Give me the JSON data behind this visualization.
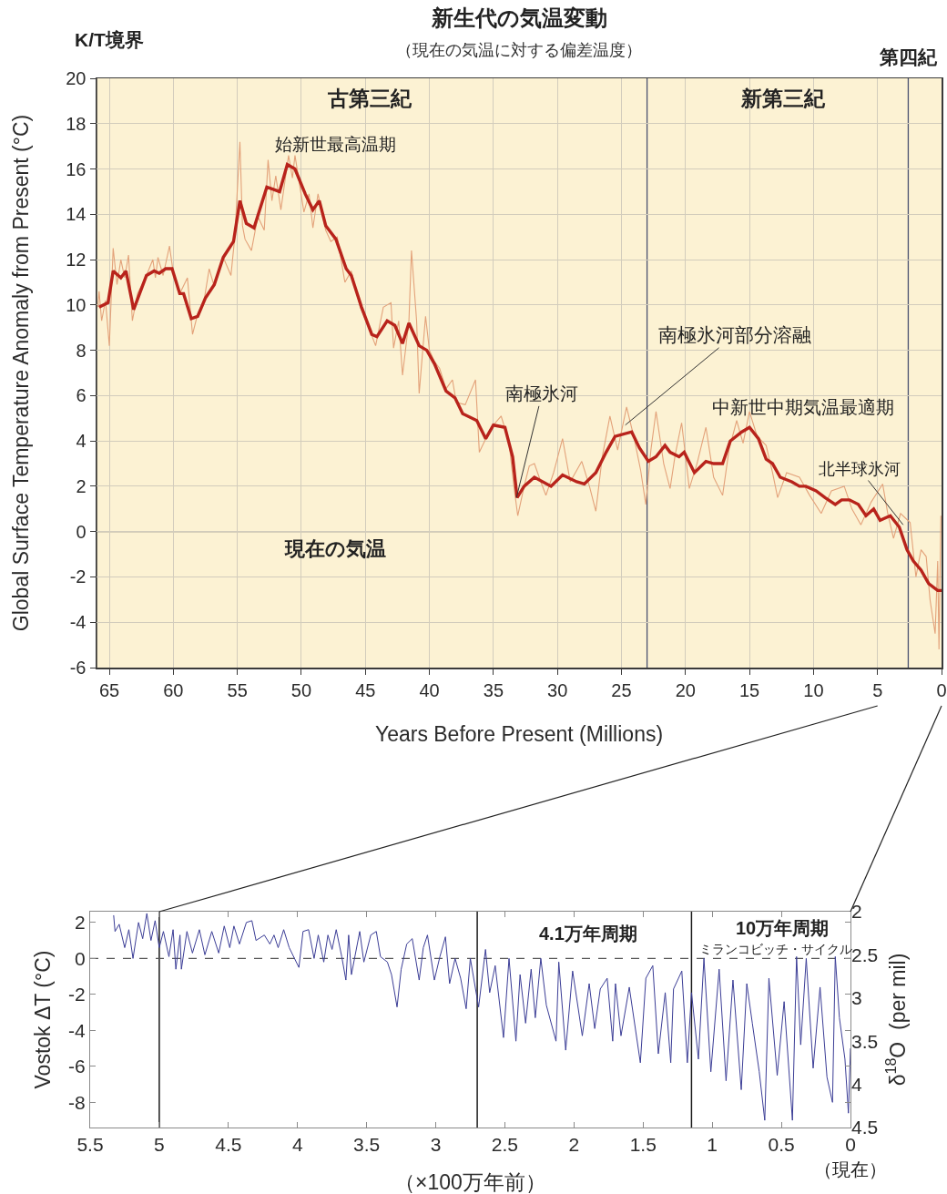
{
  "chart_data": [
    {
      "type": "line",
      "title": "新生代の気温変動",
      "subtitle": "（現在の気温に対する偏差温度）",
      "xlabel": "Years Before Present (Millions)",
      "ylabel": "Global Surface Temperature Anomaly from Present (°C)",
      "xlim": [
        66,
        0
      ],
      "xticks": [
        65,
        60,
        55,
        50,
        45,
        40,
        35,
        30,
        25,
        20,
        15,
        10,
        5,
        0
      ],
      "ylim": [
        -6,
        20
      ],
      "yticks": [
        -6,
        -4,
        -2,
        0,
        2,
        4,
        6,
        8,
        10,
        12,
        14,
        16,
        18,
        20
      ],
      "grid": true,
      "series": [
        {
          "color": "#e3a27a",
          "x": [
            65.9,
            65.8,
            65.6,
            65.3,
            65.0,
            64.7,
            64.4,
            64.1,
            63.8,
            63.5,
            63.2,
            62.8,
            62.1,
            61.6,
            61.4,
            61.2,
            60.8,
            60.3,
            60.0,
            59.5,
            58.9,
            58.5,
            58.1,
            57.6,
            57.2,
            56.8,
            56.1,
            55.5,
            55.2,
            54.8,
            54.6,
            54.4,
            53.9,
            53.4,
            52.9,
            52.6,
            52.3,
            52.0,
            51.6,
            51.0,
            50.7,
            50.5,
            49.8,
            49.4,
            49.1,
            48.7,
            48.1,
            47.7,
            47.2,
            46.6,
            46.1,
            45.4,
            44.8,
            44.2,
            43.6,
            43.0,
            42.8,
            42.4,
            42.1,
            41.6,
            41.4,
            41.0,
            40.8,
            40.3,
            40.0,
            39.6,
            39.2,
            38.7,
            38.2,
            37.9,
            37.2,
            36.4,
            36.1,
            35.6,
            35.0,
            34.4,
            33.8,
            33.4,
            33.1,
            32.6,
            32.2,
            31.8,
            31.3,
            30.9,
            30.3,
            29.6,
            29.0,
            28.1,
            27.5,
            27.0,
            26.5,
            25.9,
            25.3,
            24.6,
            24.0,
            23.5,
            23.1,
            22.7,
            22.3,
            21.7,
            21.2,
            20.8,
            20.3,
            19.7,
            19.1,
            18.4,
            17.8,
            17.1,
            16.6,
            16.0,
            15.5,
            15.0,
            14.4,
            13.7,
            13.2,
            12.8,
            12.1,
            11.1,
            10.3,
            9.4,
            8.6,
            7.6,
            7.0,
            6.3,
            5.5,
            4.6,
            4.2,
            3.75,
            3.2,
            2.45,
            2.0,
            1.6,
            1.2,
            0.9,
            0.5,
            0.3,
            0.2,
            0.05
          ],
          "values": [
            9.9,
            10.6,
            9.3,
            10.2,
            8.2,
            12.5,
            10.9,
            12.0,
            11.2,
            12.2,
            9.3,
            10.5,
            11.3,
            12.0,
            11.2,
            12.1,
            11.3,
            12.6,
            11.4,
            10.5,
            11.2,
            8.7,
            9.6,
            10.2,
            11.6,
            10.8,
            12.1,
            11.3,
            13.0,
            17.2,
            13.5,
            12.9,
            12.4,
            13.9,
            13.3,
            16.4,
            14.6,
            15.7,
            14.2,
            16.6,
            15.6,
            16.6,
            14.1,
            14.9,
            13.4,
            14.9,
            13.3,
            12.8,
            13.0,
            11.0,
            11.5,
            9.9,
            9.1,
            8.2,
            9.9,
            10.1,
            8.1,
            9.3,
            6.9,
            9.3,
            12.4,
            9.3,
            6.1,
            9.5,
            8.0,
            7.5,
            7.2,
            6.3,
            6.7,
            5.7,
            5.6,
            6.7,
            3.5,
            4.1,
            4.7,
            5.1,
            4.0,
            2.0,
            0.7,
            2.0,
            2.9,
            3.0,
            2.2,
            1.6,
            2.6,
            4.1,
            2.2,
            3.1,
            2.0,
            0.9,
            3.3,
            5.1,
            3.6,
            5.5,
            4.1,
            2.7,
            1.2,
            3.6,
            5.3,
            3.0,
            1.9,
            3.4,
            4.8,
            1.9,
            3.0,
            4.6,
            2.4,
            1.6,
            3.6,
            4.9,
            3.9,
            5.3,
            4.2,
            3.8,
            2.6,
            1.5,
            2.6,
            2.4,
            1.6,
            0.8,
            1.8,
            2.0,
            1.0,
            0.3,
            1.3,
            2.1,
            0.8,
            -0.3,
            0.8,
            0.4,
            -2.0,
            -0.8,
            -1.1,
            -3.0,
            -4.5,
            -1.3,
            -5.2,
            0.7
          ]
        },
        {
          "color": "#b8231b",
          "x": [
            65.8,
            65.1,
            64.7,
            64.1,
            63.7,
            63.1,
            62.1,
            61.5,
            61.1,
            60.6,
            60.1,
            59.5,
            59.2,
            58.6,
            58.1,
            57.5,
            56.8,
            56.1,
            55.3,
            54.8,
            54.3,
            53.7,
            52.7,
            52.2,
            51.7,
            51.1,
            50.5,
            49.7,
            49.1,
            48.6,
            48.1,
            47.3,
            46.5,
            46.1,
            45.3,
            44.5,
            44.1,
            43.3,
            42.7,
            42.1,
            41.6,
            40.8,
            40.2,
            39.6,
            38.7,
            38.0,
            37.4,
            36.3,
            35.6,
            35.0,
            34.1,
            33.5,
            33.15,
            32.6,
            31.8,
            30.5,
            29.6,
            28.5,
            27.9,
            27.0,
            26.2,
            25.5,
            24.2,
            23.6,
            22.9,
            22.3,
            21.6,
            21.2,
            20.5,
            20.1,
            19.3,
            18.4,
            17.8,
            17.1,
            16.5,
            15.6,
            15.0,
            14.3,
            13.7,
            13.2,
            12.6,
            11.7,
            11.1,
            10.6,
            9.8,
            9.1,
            8.3,
            7.8,
            7.2,
            6.5,
            5.9,
            5.3,
            4.8,
            4.0,
            3.3,
            2.7,
            2.2,
            1.6,
            1.0,
            0.3,
            0.0
          ],
          "values": [
            9.9,
            10.1,
            11.5,
            11.2,
            11.5,
            9.8,
            11.3,
            11.5,
            11.4,
            11.6,
            11.6,
            10.5,
            10.5,
            9.4,
            9.5,
            10.3,
            10.9,
            12.1,
            12.8,
            14.6,
            13.6,
            13.4,
            15.2,
            15.1,
            15.0,
            16.2,
            16.0,
            14.9,
            14.2,
            14.6,
            13.5,
            12.9,
            11.6,
            11.3,
            9.9,
            8.7,
            8.6,
            9.3,
            9.1,
            8.3,
            9.2,
            8.2,
            8.0,
            7.4,
            6.2,
            5.9,
            5.2,
            4.9,
            4.1,
            4.7,
            4.6,
            3.3,
            1.5,
            2.0,
            2.4,
            2.0,
            2.5,
            2.2,
            2.1,
            2.6,
            3.5,
            4.2,
            4.4,
            3.7,
            3.1,
            3.3,
            3.8,
            3.5,
            3.3,
            3.5,
            2.6,
            3.1,
            3.0,
            3.0,
            4.0,
            4.4,
            4.6,
            4.1,
            3.2,
            3.0,
            2.4,
            2.2,
            2.0,
            2.0,
            1.8,
            1.5,
            1.2,
            1.4,
            1.4,
            1.2,
            0.7,
            1.0,
            0.5,
            0.7,
            0.2,
            -0.8,
            -1.3,
            -1.7,
            -2.3,
            -2.6,
            -2.6
          ]
        }
      ],
      "ref_lines": [
        {
          "axis": "x",
          "value": 66,
          "label": "K/T境界",
          "color": "#333333"
        },
        {
          "axis": "x",
          "value": 23,
          "color": "#4b5270"
        },
        {
          "axis": "x",
          "value": 2.6,
          "label": "第四紀",
          "color": "#4b5270"
        },
        {
          "axis": "y",
          "value": 0,
          "label": "現在の気温",
          "color": "#6e6e6e"
        }
      ],
      "annotations": [
        "古第三紀",
        "新第三紀",
        {
          "text": "始新世最高温期",
          "x": 51.1,
          "y": 16.2
        },
        {
          "text": "南極氷河",
          "x": 33.2,
          "y": 1.5
        },
        {
          "text": "南極氷河部分溶融",
          "x": 24.7,
          "y": 4.7
        },
        {
          "text": "中新世中期気温最適期",
          "x": 15.2,
          "y": 4.6
        },
        {
          "text": "北半球氷河",
          "x": 3.0,
          "y": 0.3
        }
      ]
    },
    {
      "type": "line",
      "xlabel": "（×100万年前）",
      "ylabel": "Vostok ΔT (°C)",
      "y2label": "δ$^{18}$O  (per mil)",
      "xlim": [
        5.5,
        0
      ],
      "xticks": [
        5.5,
        5,
        4.5,
        4,
        3.5,
        3,
        2.5,
        2,
        1.5,
        1,
        0.5,
        0
      ],
      "ylim": [
        -9.4,
        2.6
      ],
      "yticks": [
        -8,
        -6,
        -4,
        -2,
        0,
        2
      ],
      "y2lim": [
        4.5,
        2
      ],
      "y2ticks": [
        2,
        2.5,
        3,
        3.5,
        4,
        4.5
      ],
      "series": [
        {
          "color": "#3b3d96",
          "x": [
            5.33,
            5.32,
            5.29,
            5.25,
            5.22,
            5.19,
            5.15,
            5.12,
            5.09,
            5.06,
            5.03,
            5.0,
            4.97,
            4.93,
            4.9,
            4.88,
            4.85,
            4.84,
            4.8,
            4.76,
            4.71,
            4.67,
            4.62,
            4.57,
            4.53,
            4.49,
            4.46,
            4.42,
            4.37,
            4.33,
            4.3,
            4.24,
            4.2,
            4.17,
            4.14,
            4.1,
            4.06,
            3.99,
            3.96,
            3.92,
            3.88,
            3.85,
            3.81,
            3.78,
            3.75,
            3.72,
            3.68,
            3.65,
            3.63,
            3.61,
            3.55,
            3.52,
            3.47,
            3.43,
            3.4,
            3.35,
            3.32,
            3.28,
            3.25,
            3.21,
            3.17,
            3.12,
            3.09,
            3.06,
            3.01,
            2.97,
            2.93,
            2.9,
            2.86,
            2.82,
            2.78,
            2.75,
            2.69,
            2.64,
            2.61,
            2.57,
            2.51,
            2.47,
            2.42,
            2.39,
            2.35,
            2.31,
            2.28,
            2.24,
            2.2,
            2.13,
            2.11,
            2.06,
            2.01,
            1.94,
            1.89,
            1.85,
            1.81,
            1.76,
            1.72,
            1.7,
            1.66,
            1.6,
            1.52,
            1.48,
            1.43,
            1.39,
            1.34,
            1.3,
            1.28,
            1.22,
            1.18,
            1.15,
            1.1,
            1.06,
            1.01,
            0.95,
            0.9,
            0.85,
            0.79,
            0.75,
            0.71,
            0.66,
            0.62,
            0.59,
            0.53,
            0.48,
            0.42,
            0.39,
            0.36,
            0.32,
            0.27,
            0.22,
            0.17,
            0.13,
            0.11,
            0.08,
            0.04,
            0.015,
            0.0
          ],
          "values": [
            2.4,
            1.5,
            1.9,
            0.6,
            1.6,
            0.0,
            2.0,
            1.1,
            2.5,
            1.0,
            2.1,
            0.6,
            1.5,
            0.1,
            1.6,
            -0.6,
            1.3,
            -0.6,
            1.5,
            0.3,
            1.6,
            0.2,
            1.5,
            0.3,
            1.8,
            0.6,
            1.8,
            0.8,
            2.0,
            2.1,
            1.0,
            1.3,
            0.8,
            1.3,
            0.6,
            1.6,
            0.6,
            -0.5,
            1.5,
            1.6,
            0.0,
            1.3,
            -0.2,
            1.3,
            0.5,
            1.6,
            0.1,
            -1.2,
            1.3,
            -0.9,
            1.5,
            -0.2,
            1.3,
            1.5,
            0.1,
            -0.2,
            -0.9,
            -2.7,
            -0.6,
            0.8,
            1.1,
            -1.2,
            0.6,
            1.3,
            -1.2,
            0.1,
            1.2,
            -1.4,
            0.0,
            -1.1,
            -2.8,
            0.0,
            -2.7,
            0.5,
            -1.9,
            -0.4,
            -4.4,
            0.0,
            -4.6,
            -0.9,
            -3.6,
            -0.6,
            -3.3,
            0.0,
            -2.6,
            -4.6,
            -0.2,
            -5.1,
            -0.7,
            -4.3,
            -1.4,
            -3.9,
            -1.7,
            -1.1,
            -4.6,
            -1.4,
            -4.3,
            -1.6,
            -5.8,
            -1.1,
            -0.4,
            -5.3,
            -1.9,
            -5.8,
            -1.7,
            -0.7,
            -5.8,
            -1.9,
            -5.6,
            0.0,
            -6.3,
            -0.6,
            -6.8,
            -1.2,
            -7.3,
            -1.4,
            -3.6,
            -6.3,
            -9.0,
            -1.1,
            -6.5,
            -2.4,
            -9.0,
            0.1,
            -4.8,
            0.0,
            -6.1,
            -1.6,
            -6.6,
            -8.0,
            0.1,
            -3.3,
            -5.6,
            -8.6,
            -5.0
          ]
        }
      ],
      "ref_lines": [
        {
          "axis": "x",
          "value": 5,
          "color": "#1a1a1a"
        },
        {
          "axis": "x",
          "value": 2.7,
          "color": "#1a1a1a"
        },
        {
          "axis": "x",
          "value": 1.15,
          "color": "#1a1a1a"
        },
        {
          "axis": "y",
          "value": 0,
          "color": "#555555",
          "line_style": "dashed"
        }
      ],
      "annotations": [
        "4.1万年周期",
        "10万年周期",
        "ミランコビッチ・サイクル",
        "（現在）"
      ]
    }
  ]
}
